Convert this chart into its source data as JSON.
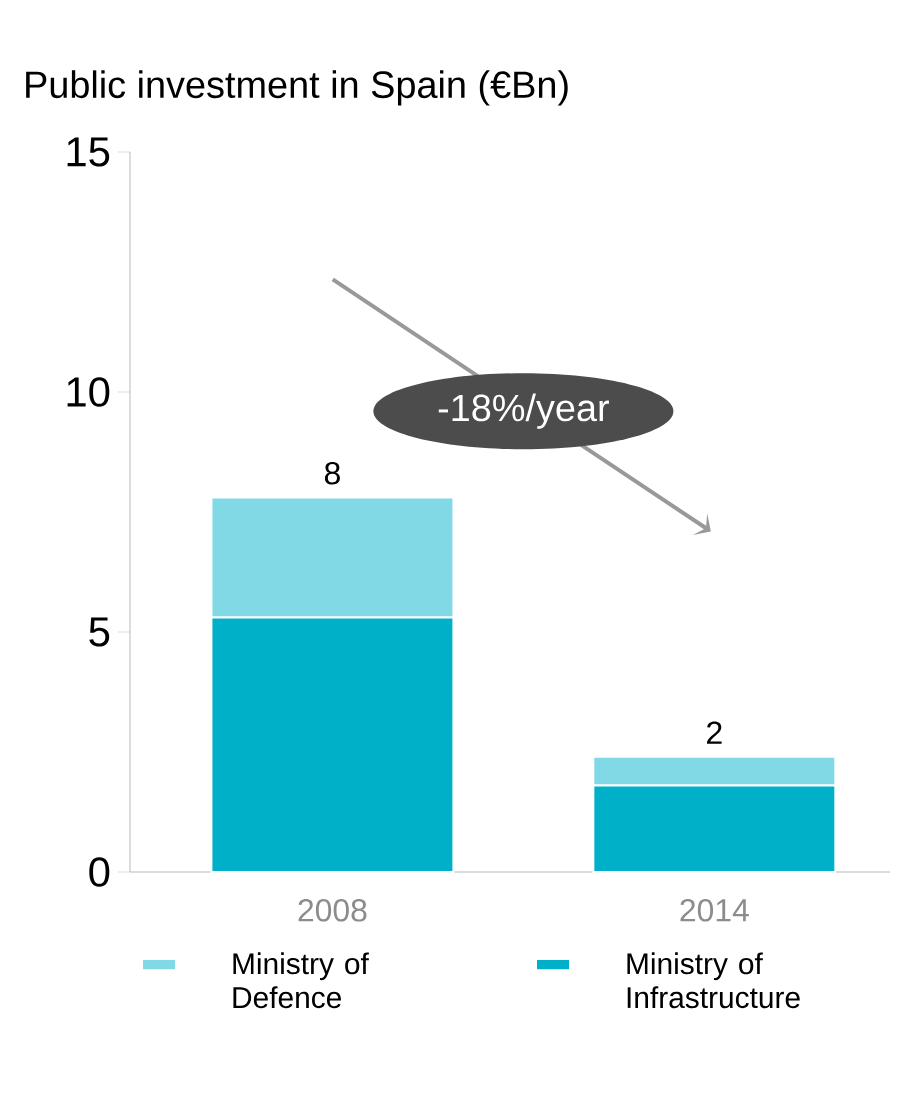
{
  "chart_data": {
    "type": "bar",
    "title": "Public investment in Spain (€Bn)",
    "stacked": true,
    "categories": [
      "2008",
      "2014"
    ],
    "series": [
      {
        "name": "Ministry of Infrastructure",
        "color": "#00b0c8",
        "values": [
          5.3,
          1.8
        ]
      },
      {
        "name": "Ministry of Defence",
        "color": "#80d9e4",
        "values": [
          2.5,
          0.6
        ]
      }
    ],
    "ylim": [
      0,
      15
    ],
    "yticks": [
      0,
      5,
      10,
      15
    ],
    "totals": [
      "8",
      "2"
    ],
    "legend": "bottom",
    "grid": false,
    "annotations": [
      "-18%/year"
    ]
  }
}
